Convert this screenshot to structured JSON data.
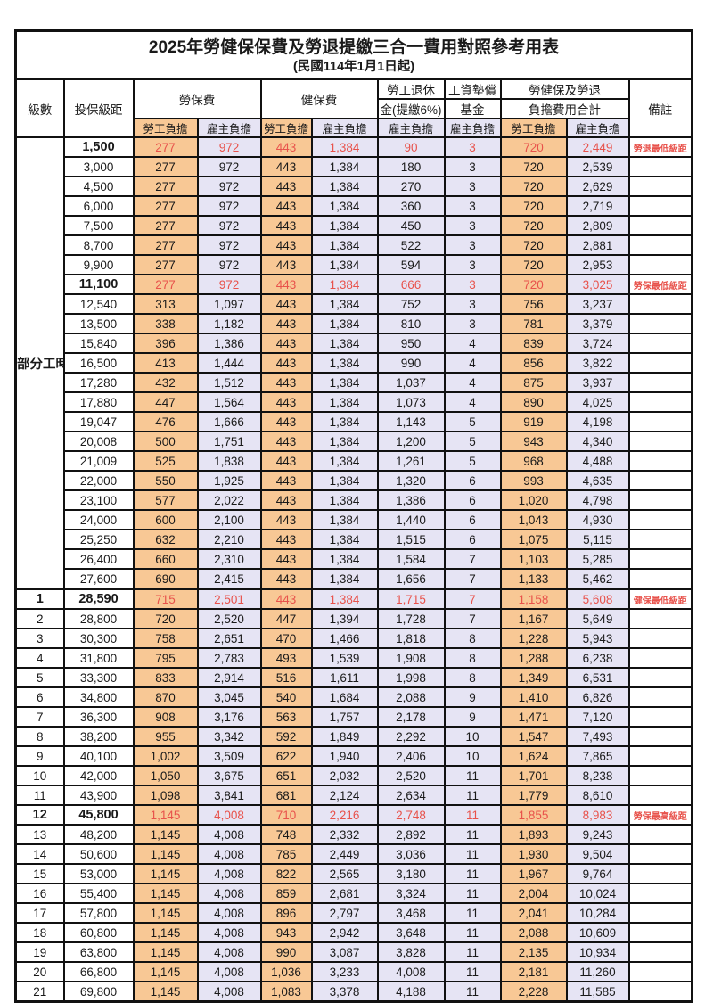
{
  "title": {
    "main": "2025年勞健保保費及勞退提繳三合一費用對照參考用表",
    "sub": "(民國114年1月1日起)"
  },
  "header": {
    "level": "級數",
    "bracket": "投保級距",
    "labor_ins": "勞保費",
    "health_ins": "健保費",
    "pension_l1": "勞工退休",
    "pension_l2": "金(提繳6%)",
    "fund_l1": "工資墊償",
    "fund_l2": "基金",
    "total_l1": "勞健保及勞退",
    "total_l2": "負擔費用合計",
    "remark": "備註",
    "employee": "勞工負擔",
    "employer": "雇主負擔"
  },
  "part_time": {
    "label": "部分工時",
    "rowspan": 23
  },
  "colors": {
    "employee_bg": "#F8C895",
    "employer_bg": "#E6E4F4",
    "highlight_text": "#E8524B",
    "grid": "#111111"
  },
  "rows": [
    {
      "bracket": "1,500",
      "li_emp": "277",
      "li_er": "972",
      "hi_emp": "443",
      "hi_er": "1,384",
      "pension": "90",
      "fund": "3",
      "sum_emp": "720",
      "sum_er": "2,449",
      "note": "勞退最低級距",
      "highlight": true
    },
    {
      "bracket": "3,000",
      "li_emp": "277",
      "li_er": "972",
      "hi_emp": "443",
      "hi_er": "1,384",
      "pension": "180",
      "fund": "3",
      "sum_emp": "720",
      "sum_er": "2,539",
      "note": "",
      "highlight": false
    },
    {
      "bracket": "4,500",
      "li_emp": "277",
      "li_er": "972",
      "hi_emp": "443",
      "hi_er": "1,384",
      "pension": "270",
      "fund": "3",
      "sum_emp": "720",
      "sum_er": "2,629",
      "note": "",
      "highlight": false
    },
    {
      "bracket": "6,000",
      "li_emp": "277",
      "li_er": "972",
      "hi_emp": "443",
      "hi_er": "1,384",
      "pension": "360",
      "fund": "3",
      "sum_emp": "720",
      "sum_er": "2,719",
      "note": "",
      "highlight": false
    },
    {
      "bracket": "7,500",
      "li_emp": "277",
      "li_er": "972",
      "hi_emp": "443",
      "hi_er": "1,384",
      "pension": "450",
      "fund": "3",
      "sum_emp": "720",
      "sum_er": "2,809",
      "note": "",
      "highlight": false
    },
    {
      "bracket": "8,700",
      "li_emp": "277",
      "li_er": "972",
      "hi_emp": "443",
      "hi_er": "1,384",
      "pension": "522",
      "fund": "3",
      "sum_emp": "720",
      "sum_er": "2,881",
      "note": "",
      "highlight": false
    },
    {
      "bracket": "9,900",
      "li_emp": "277",
      "li_er": "972",
      "hi_emp": "443",
      "hi_er": "1,384",
      "pension": "594",
      "fund": "3",
      "sum_emp": "720",
      "sum_er": "2,953",
      "note": "",
      "highlight": false
    },
    {
      "bracket": "11,100",
      "li_emp": "277",
      "li_er": "972",
      "hi_emp": "443",
      "hi_er": "1,384",
      "pension": "666",
      "fund": "3",
      "sum_emp": "720",
      "sum_er": "3,025",
      "note": "勞保最低級距",
      "highlight": true
    },
    {
      "bracket": "12,540",
      "li_emp": "313",
      "li_er": "1,097",
      "hi_emp": "443",
      "hi_er": "1,384",
      "pension": "752",
      "fund": "3",
      "sum_emp": "756",
      "sum_er": "3,237",
      "note": "",
      "highlight": false
    },
    {
      "bracket": "13,500",
      "li_emp": "338",
      "li_er": "1,182",
      "hi_emp": "443",
      "hi_er": "1,384",
      "pension": "810",
      "fund": "3",
      "sum_emp": "781",
      "sum_er": "3,379",
      "note": "",
      "highlight": false
    },
    {
      "bracket": "15,840",
      "li_emp": "396",
      "li_er": "1,386",
      "hi_emp": "443",
      "hi_er": "1,384",
      "pension": "950",
      "fund": "4",
      "sum_emp": "839",
      "sum_er": "3,724",
      "note": "",
      "highlight": false
    },
    {
      "bracket": "16,500",
      "li_emp": "413",
      "li_er": "1,444",
      "hi_emp": "443",
      "hi_er": "1,384",
      "pension": "990",
      "fund": "4",
      "sum_emp": "856",
      "sum_er": "3,822",
      "note": "",
      "highlight": false
    },
    {
      "bracket": "17,280",
      "li_emp": "432",
      "li_er": "1,512",
      "hi_emp": "443",
      "hi_er": "1,384",
      "pension": "1,037",
      "fund": "4",
      "sum_emp": "875",
      "sum_er": "3,937",
      "note": "",
      "highlight": false
    },
    {
      "bracket": "17,880",
      "li_emp": "447",
      "li_er": "1,564",
      "hi_emp": "443",
      "hi_er": "1,384",
      "pension": "1,073",
      "fund": "4",
      "sum_emp": "890",
      "sum_er": "4,025",
      "note": "",
      "highlight": false
    },
    {
      "bracket": "19,047",
      "li_emp": "476",
      "li_er": "1,666",
      "hi_emp": "443",
      "hi_er": "1,384",
      "pension": "1,143",
      "fund": "5",
      "sum_emp": "919",
      "sum_er": "4,198",
      "note": "",
      "highlight": false
    },
    {
      "bracket": "20,008",
      "li_emp": "500",
      "li_er": "1,751",
      "hi_emp": "443",
      "hi_er": "1,384",
      "pension": "1,200",
      "fund": "5",
      "sum_emp": "943",
      "sum_er": "4,340",
      "note": "",
      "highlight": false
    },
    {
      "bracket": "21,009",
      "li_emp": "525",
      "li_er": "1,838",
      "hi_emp": "443",
      "hi_er": "1,384",
      "pension": "1,261",
      "fund": "5",
      "sum_emp": "968",
      "sum_er": "4,488",
      "note": "",
      "highlight": false
    },
    {
      "bracket": "22,000",
      "li_emp": "550",
      "li_er": "1,925",
      "hi_emp": "443",
      "hi_er": "1,384",
      "pension": "1,320",
      "fund": "6",
      "sum_emp": "993",
      "sum_er": "4,635",
      "note": "",
      "highlight": false
    },
    {
      "bracket": "23,100",
      "li_emp": "577",
      "li_er": "2,022",
      "hi_emp": "443",
      "hi_er": "1,384",
      "pension": "1,386",
      "fund": "6",
      "sum_emp": "1,020",
      "sum_er": "4,798",
      "note": "",
      "highlight": false
    },
    {
      "bracket": "24,000",
      "li_emp": "600",
      "li_er": "2,100",
      "hi_emp": "443",
      "hi_er": "1,384",
      "pension": "1,440",
      "fund": "6",
      "sum_emp": "1,043",
      "sum_er": "4,930",
      "note": "",
      "highlight": false
    },
    {
      "bracket": "25,250",
      "li_emp": "632",
      "li_er": "2,210",
      "hi_emp": "443",
      "hi_er": "1,384",
      "pension": "1,515",
      "fund": "6",
      "sum_emp": "1,075",
      "sum_er": "5,115",
      "note": "",
      "highlight": false
    },
    {
      "bracket": "26,400",
      "li_emp": "660",
      "li_er": "2,310",
      "hi_emp": "443",
      "hi_er": "1,384",
      "pension": "1,584",
      "fund": "7",
      "sum_emp": "1,103",
      "sum_er": "5,285",
      "note": "",
      "highlight": false
    },
    {
      "bracket": "27,600",
      "li_emp": "690",
      "li_er": "2,415",
      "hi_emp": "443",
      "hi_er": "1,384",
      "pension": "1,656",
      "fund": "7",
      "sum_emp": "1,133",
      "sum_er": "5,462",
      "note": "",
      "highlight": false
    },
    {
      "level": "1",
      "bracket": "28,590",
      "li_emp": "715",
      "li_er": "2,501",
      "hi_emp": "443",
      "hi_er": "1,384",
      "pension": "1,715",
      "fund": "7",
      "sum_emp": "1,158",
      "sum_er": "5,608",
      "note": "健保最低級距",
      "highlight": true
    },
    {
      "level": "2",
      "bracket": "28,800",
      "li_emp": "720",
      "li_er": "2,520",
      "hi_emp": "447",
      "hi_er": "1,394",
      "pension": "1,728",
      "fund": "7",
      "sum_emp": "1,167",
      "sum_er": "5,649",
      "note": "",
      "highlight": false
    },
    {
      "level": "3",
      "bracket": "30,300",
      "li_emp": "758",
      "li_er": "2,651",
      "hi_emp": "470",
      "hi_er": "1,466",
      "pension": "1,818",
      "fund": "8",
      "sum_emp": "1,228",
      "sum_er": "5,943",
      "note": "",
      "highlight": false
    },
    {
      "level": "4",
      "bracket": "31,800",
      "li_emp": "795",
      "li_er": "2,783",
      "hi_emp": "493",
      "hi_er": "1,539",
      "pension": "1,908",
      "fund": "8",
      "sum_emp": "1,288",
      "sum_er": "6,238",
      "note": "",
      "highlight": false
    },
    {
      "level": "5",
      "bracket": "33,300",
      "li_emp": "833",
      "li_er": "2,914",
      "hi_emp": "516",
      "hi_er": "1,611",
      "pension": "1,998",
      "fund": "8",
      "sum_emp": "1,349",
      "sum_er": "6,531",
      "note": "",
      "highlight": false
    },
    {
      "level": "6",
      "bracket": "34,800",
      "li_emp": "870",
      "li_er": "3,045",
      "hi_emp": "540",
      "hi_er": "1,684",
      "pension": "2,088",
      "fund": "9",
      "sum_emp": "1,410",
      "sum_er": "6,826",
      "note": "",
      "highlight": false
    },
    {
      "level": "7",
      "bracket": "36,300",
      "li_emp": "908",
      "li_er": "3,176",
      "hi_emp": "563",
      "hi_er": "1,757",
      "pension": "2,178",
      "fund": "9",
      "sum_emp": "1,471",
      "sum_er": "7,120",
      "note": "",
      "highlight": false
    },
    {
      "level": "8",
      "bracket": "38,200",
      "li_emp": "955",
      "li_er": "3,342",
      "hi_emp": "592",
      "hi_er": "1,849",
      "pension": "2,292",
      "fund": "10",
      "sum_emp": "1,547",
      "sum_er": "7,493",
      "note": "",
      "highlight": false
    },
    {
      "level": "9",
      "bracket": "40,100",
      "li_emp": "1,002",
      "li_er": "3,509",
      "hi_emp": "622",
      "hi_er": "1,940",
      "pension": "2,406",
      "fund": "10",
      "sum_emp": "1,624",
      "sum_er": "7,865",
      "note": "",
      "highlight": false
    },
    {
      "level": "10",
      "bracket": "42,000",
      "li_emp": "1,050",
      "li_er": "3,675",
      "hi_emp": "651",
      "hi_er": "2,032",
      "pension": "2,520",
      "fund": "11",
      "sum_emp": "1,701",
      "sum_er": "8,238",
      "note": "",
      "highlight": false
    },
    {
      "level": "11",
      "bracket": "43,900",
      "li_emp": "1,098",
      "li_er": "3,841",
      "hi_emp": "681",
      "hi_er": "2,124",
      "pension": "2,634",
      "fund": "11",
      "sum_emp": "1,779",
      "sum_er": "8,610",
      "note": "",
      "highlight": false
    },
    {
      "level": "12",
      "bracket": "45,800",
      "li_emp": "1,145",
      "li_er": "4,008",
      "hi_emp": "710",
      "hi_er": "2,216",
      "pension": "2,748",
      "fund": "11",
      "sum_emp": "1,855",
      "sum_er": "8,983",
      "note": "勞保最高級距",
      "highlight": true
    },
    {
      "level": "13",
      "bracket": "48,200",
      "li_emp": "1,145",
      "li_er": "4,008",
      "hi_emp": "748",
      "hi_er": "2,332",
      "pension": "2,892",
      "fund": "11",
      "sum_emp": "1,893",
      "sum_er": "9,243",
      "note": "",
      "highlight": false
    },
    {
      "level": "14",
      "bracket": "50,600",
      "li_emp": "1,145",
      "li_er": "4,008",
      "hi_emp": "785",
      "hi_er": "2,449",
      "pension": "3,036",
      "fund": "11",
      "sum_emp": "1,930",
      "sum_er": "9,504",
      "note": "",
      "highlight": false
    },
    {
      "level": "15",
      "bracket": "53,000",
      "li_emp": "1,145",
      "li_er": "4,008",
      "hi_emp": "822",
      "hi_er": "2,565",
      "pension": "3,180",
      "fund": "11",
      "sum_emp": "1,967",
      "sum_er": "9,764",
      "note": "",
      "highlight": false
    },
    {
      "level": "16",
      "bracket": "55,400",
      "li_emp": "1,145",
      "li_er": "4,008",
      "hi_emp": "859",
      "hi_er": "2,681",
      "pension": "3,324",
      "fund": "11",
      "sum_emp": "2,004",
      "sum_er": "10,024",
      "note": "",
      "highlight": false
    },
    {
      "level": "17",
      "bracket": "57,800",
      "li_emp": "1,145",
      "li_er": "4,008",
      "hi_emp": "896",
      "hi_er": "2,797",
      "pension": "3,468",
      "fund": "11",
      "sum_emp": "2,041",
      "sum_er": "10,284",
      "note": "",
      "highlight": false
    },
    {
      "level": "18",
      "bracket": "60,800",
      "li_emp": "1,145",
      "li_er": "4,008",
      "hi_emp": "943",
      "hi_er": "2,942",
      "pension": "3,648",
      "fund": "11",
      "sum_emp": "2,088",
      "sum_er": "10,609",
      "note": "",
      "highlight": false
    },
    {
      "level": "19",
      "bracket": "63,800",
      "li_emp": "1,145",
      "li_er": "4,008",
      "hi_emp": "990",
      "hi_er": "3,087",
      "pension": "3,828",
      "fund": "11",
      "sum_emp": "2,135",
      "sum_er": "10,934",
      "note": "",
      "highlight": false
    },
    {
      "level": "20",
      "bracket": "66,800",
      "li_emp": "1,145",
      "li_er": "4,008",
      "hi_emp": "1,036",
      "hi_er": "3,233",
      "pension": "4,008",
      "fund": "11",
      "sum_emp": "2,181",
      "sum_er": "11,260",
      "note": "",
      "highlight": false
    },
    {
      "level": "21",
      "bracket": "69,800",
      "li_emp": "1,145",
      "li_er": "4,008",
      "hi_emp": "1,083",
      "hi_er": "3,378",
      "pension": "4,188",
      "fund": "11",
      "sum_emp": "2,228",
      "sum_er": "11,585",
      "note": "",
      "highlight": false
    }
  ]
}
